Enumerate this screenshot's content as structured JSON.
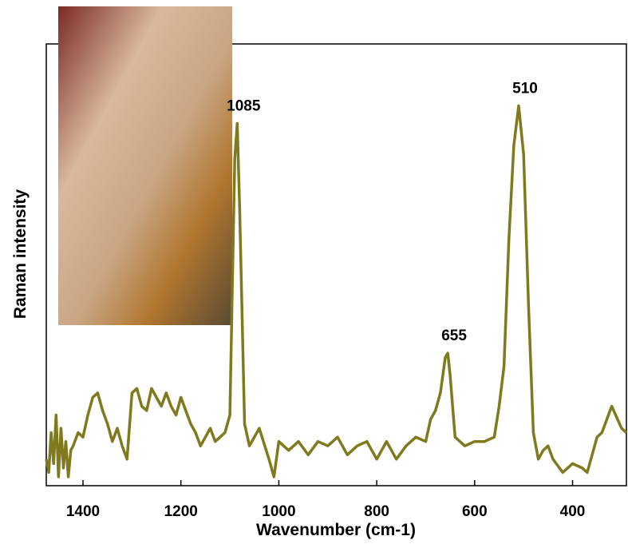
{
  "chart_data": {
    "type": "line",
    "xlabel": "Wavenumber (cm-1)",
    "ylabel": "Raman intensity",
    "x": [
      1475,
      1470,
      1465,
      1460,
      1455,
      1450,
      1445,
      1440,
      1435,
      1430,
      1425,
      1420,
      1410,
      1400,
      1390,
      1380,
      1370,
      1360,
      1350,
      1340,
      1330,
      1320,
      1310,
      1300,
      1290,
      1280,
      1270,
      1260,
      1250,
      1240,
      1230,
      1220,
      1210,
      1200,
      1190,
      1180,
      1170,
      1160,
      1150,
      1140,
      1130,
      1120,
      1110,
      1100,
      1090,
      1085,
      1080,
      1070,
      1060,
      1040,
      1020,
      1010,
      1000,
      980,
      960,
      940,
      920,
      900,
      880,
      860,
      840,
      820,
      800,
      780,
      760,
      740,
      720,
      700,
      690,
      680,
      670,
      660,
      655,
      650,
      640,
      620,
      600,
      580,
      560,
      550,
      540,
      530,
      520,
      510,
      500,
      490,
      480,
      470,
      460,
      450,
      440,
      420,
      400,
      380,
      370,
      360,
      350,
      340,
      320,
      300,
      290
    ],
    "series": [
      {
        "color": "#807a1e",
        "values": [
          6,
          3,
          12,
          5,
          16,
          2,
          13,
          4,
          10,
          2,
          8,
          9,
          12,
          11,
          16,
          20,
          21,
          17,
          14,
          10,
          13,
          9,
          6,
          21,
          22,
          18,
          17,
          22,
          20,
          18,
          21,
          18,
          16,
          20,
          17,
          14,
          12,
          9,
          11,
          13,
          10,
          11,
          12,
          16,
          74,
          82,
          63,
          14,
          9,
          13,
          6,
          2,
          10,
          8,
          10,
          7,
          10,
          9,
          11,
          7,
          9,
          10,
          6,
          10,
          6,
          9,
          11,
          10,
          15,
          17,
          21,
          29,
          30,
          25,
          11,
          9,
          10,
          10,
          11,
          18,
          27,
          56,
          77,
          86,
          75,
          41,
          12,
          6,
          8,
          9,
          6,
          3,
          5,
          4,
          3,
          7,
          11,
          12,
          18,
          13,
          12
        ]
      }
    ],
    "xlim": [
      1475,
      290
    ],
    "ylim": [
      0,
      100
    ],
    "xticks": [
      1400,
      1200,
      1000,
      800,
      600,
      400
    ],
    "annotations": [
      {
        "text": "1085",
        "x": 1085,
        "y": 82
      },
      {
        "text": "655",
        "x": 655,
        "y": 30
      },
      {
        "text": "510",
        "x": 510,
        "y": 86
      }
    ]
  }
}
